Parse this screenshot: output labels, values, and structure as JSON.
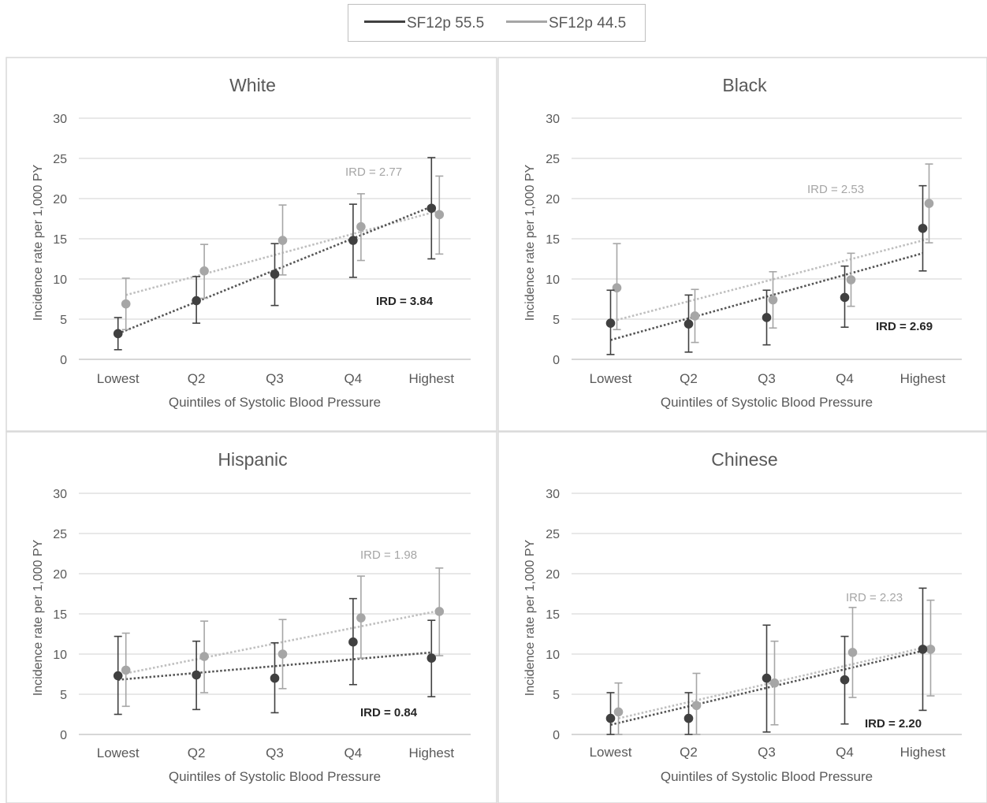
{
  "legend": {
    "series_a": "SF12p 55.5",
    "series_b": "SF12p 44.5",
    "color_a": "#404040",
    "color_b": "#a6a6a6"
  },
  "chart_data": [
    {
      "type": "scatter",
      "title": "White",
      "xlabel": "Quintiles of Systolic Blood Pressure",
      "ylabel": "Incidence rate per 1,000 PY",
      "categories": [
        "Lowest",
        "Q2",
        "Q3",
        "Q4",
        "Highest"
      ],
      "ylim": [
        0,
        30
      ],
      "yticks": [
        "0",
        "5",
        "10",
        "15",
        "20",
        "25",
        "30"
      ],
      "grid": true,
      "series": [
        {
          "name": "SF12p 55.5",
          "values": [
            3.2,
            7.3,
            10.6,
            14.8,
            18.8
          ],
          "lower": [
            1.2,
            4.5,
            6.7,
            10.2,
            12.5
          ],
          "upper": [
            5.2,
            10.3,
            14.4,
            19.3,
            25.1
          ],
          "trend": [
            3.2,
            19.0
          ],
          "ird_label": "IRD = 3.84"
        },
        {
          "name": "SF12p 44.5",
          "values": [
            6.9,
            11.0,
            14.8,
            16.5,
            18.0
          ],
          "lower": [
            3.7,
            7.6,
            10.5,
            12.3,
            13.1
          ],
          "upper": [
            10.1,
            14.3,
            19.2,
            20.6,
            22.8
          ],
          "trend": [
            8.0,
            18.5
          ],
          "ird_label": "IRD = 2.77"
        }
      ]
    },
    {
      "type": "scatter",
      "title": "Black",
      "xlabel": "Quintiles of Systolic Blood Pressure",
      "ylabel": "Incidence rate per 1,000 PY",
      "categories": [
        "Lowest",
        "Q2",
        "Q3",
        "Q4",
        "Highest"
      ],
      "ylim": [
        0,
        30
      ],
      "yticks": [
        "0",
        "5",
        "10",
        "15",
        "20",
        "25",
        "30"
      ],
      "grid": true,
      "series": [
        {
          "name": "SF12p 55.5",
          "values": [
            4.5,
            4.4,
            5.2,
            7.7,
            16.3
          ],
          "lower": [
            0.6,
            0.9,
            1.8,
            4.0,
            11.0
          ],
          "upper": [
            8.6,
            8.0,
            8.6,
            11.6,
            21.6
          ],
          "trend": [
            2.4,
            13.2
          ],
          "ird_label": "IRD = 2.69"
        },
        {
          "name": "SF12p 44.5",
          "values": [
            8.9,
            5.4,
            7.4,
            9.9,
            19.4
          ],
          "lower": [
            3.7,
            2.1,
            3.9,
            6.6,
            14.5
          ],
          "upper": [
            14.4,
            8.7,
            10.9,
            13.2,
            24.3
          ],
          "trend": [
            4.9,
            15.0
          ],
          "ird_label": "IRD = 2.53"
        }
      ]
    },
    {
      "type": "scatter",
      "title": "Hispanic",
      "xlabel": "Quintiles of Systolic Blood Pressure",
      "ylabel": "Incidence rate per 1,000 PY",
      "categories": [
        "Lowest",
        "Q2",
        "Q3",
        "Q4",
        "Highest"
      ],
      "ylim": [
        0,
        30
      ],
      "yticks": [
        "0",
        "5",
        "10",
        "15",
        "20",
        "25",
        "30"
      ],
      "grid": true,
      "series": [
        {
          "name": "SF12p 55.5",
          "values": [
            7.3,
            7.4,
            7.0,
            11.5,
            9.5
          ],
          "lower": [
            2.5,
            3.1,
            2.7,
            6.2,
            4.7
          ],
          "upper": [
            12.2,
            11.6,
            11.4,
            16.9,
            14.2
          ],
          "trend": [
            6.8,
            10.2
          ],
          "ird_label": "IRD = 0.84"
        },
        {
          "name": "SF12p 44.5",
          "values": [
            8.0,
            9.7,
            10.0,
            14.5,
            15.3
          ],
          "lower": [
            3.5,
            5.2,
            5.7,
            9.5,
            9.8
          ],
          "upper": [
            12.6,
            14.1,
            14.3,
            19.7,
            20.7
          ],
          "trend": [
            7.6,
            15.4
          ],
          "ird_label": "IRD = 1.98"
        }
      ]
    },
    {
      "type": "scatter",
      "title": "Chinese",
      "xlabel": "Quintiles of Systolic Blood Pressure",
      "ylabel": "Incidence rate per 1,000 PY",
      "categories": [
        "Lowest",
        "Q2",
        "Q3",
        "Q4",
        "Highest"
      ],
      "ylim": [
        0,
        30
      ],
      "yticks": [
        "0",
        "5",
        "10",
        "15",
        "20",
        "25",
        "30"
      ],
      "grid": true,
      "series": [
        {
          "name": "SF12p 55.5",
          "values": [
            2.0,
            2.0,
            7.0,
            6.8,
            10.6
          ],
          "lower": [
            0.0,
            0.0,
            0.3,
            1.3,
            3.0
          ],
          "upper": [
            5.2,
            5.2,
            13.6,
            12.2,
            18.2
          ],
          "trend": [
            1.2,
            10.4
          ],
          "ird_label": "IRD = 2.20"
        },
        {
          "name": "SF12p 44.5",
          "values": [
            2.8,
            3.6,
            6.4,
            10.2,
            10.6
          ],
          "lower": [
            0.0,
            0.0,
            1.2,
            4.6,
            4.8
          ],
          "upper": [
            6.4,
            7.6,
            11.6,
            15.8,
            16.7
          ],
          "trend": [
            2.0,
            11.0
          ],
          "ird_label": "IRD = 2.23"
        }
      ]
    }
  ]
}
